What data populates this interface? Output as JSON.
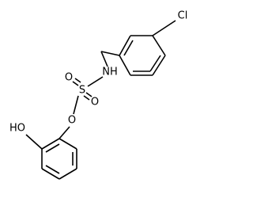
{
  "atoms": {
    "chlorine": "Cl",
    "amine": "NH",
    "sulfur": "S",
    "oxo_top": "O",
    "oxo_bottom": "O",
    "ester_oxygen": "O",
    "hydroxyl": "HO"
  }
}
